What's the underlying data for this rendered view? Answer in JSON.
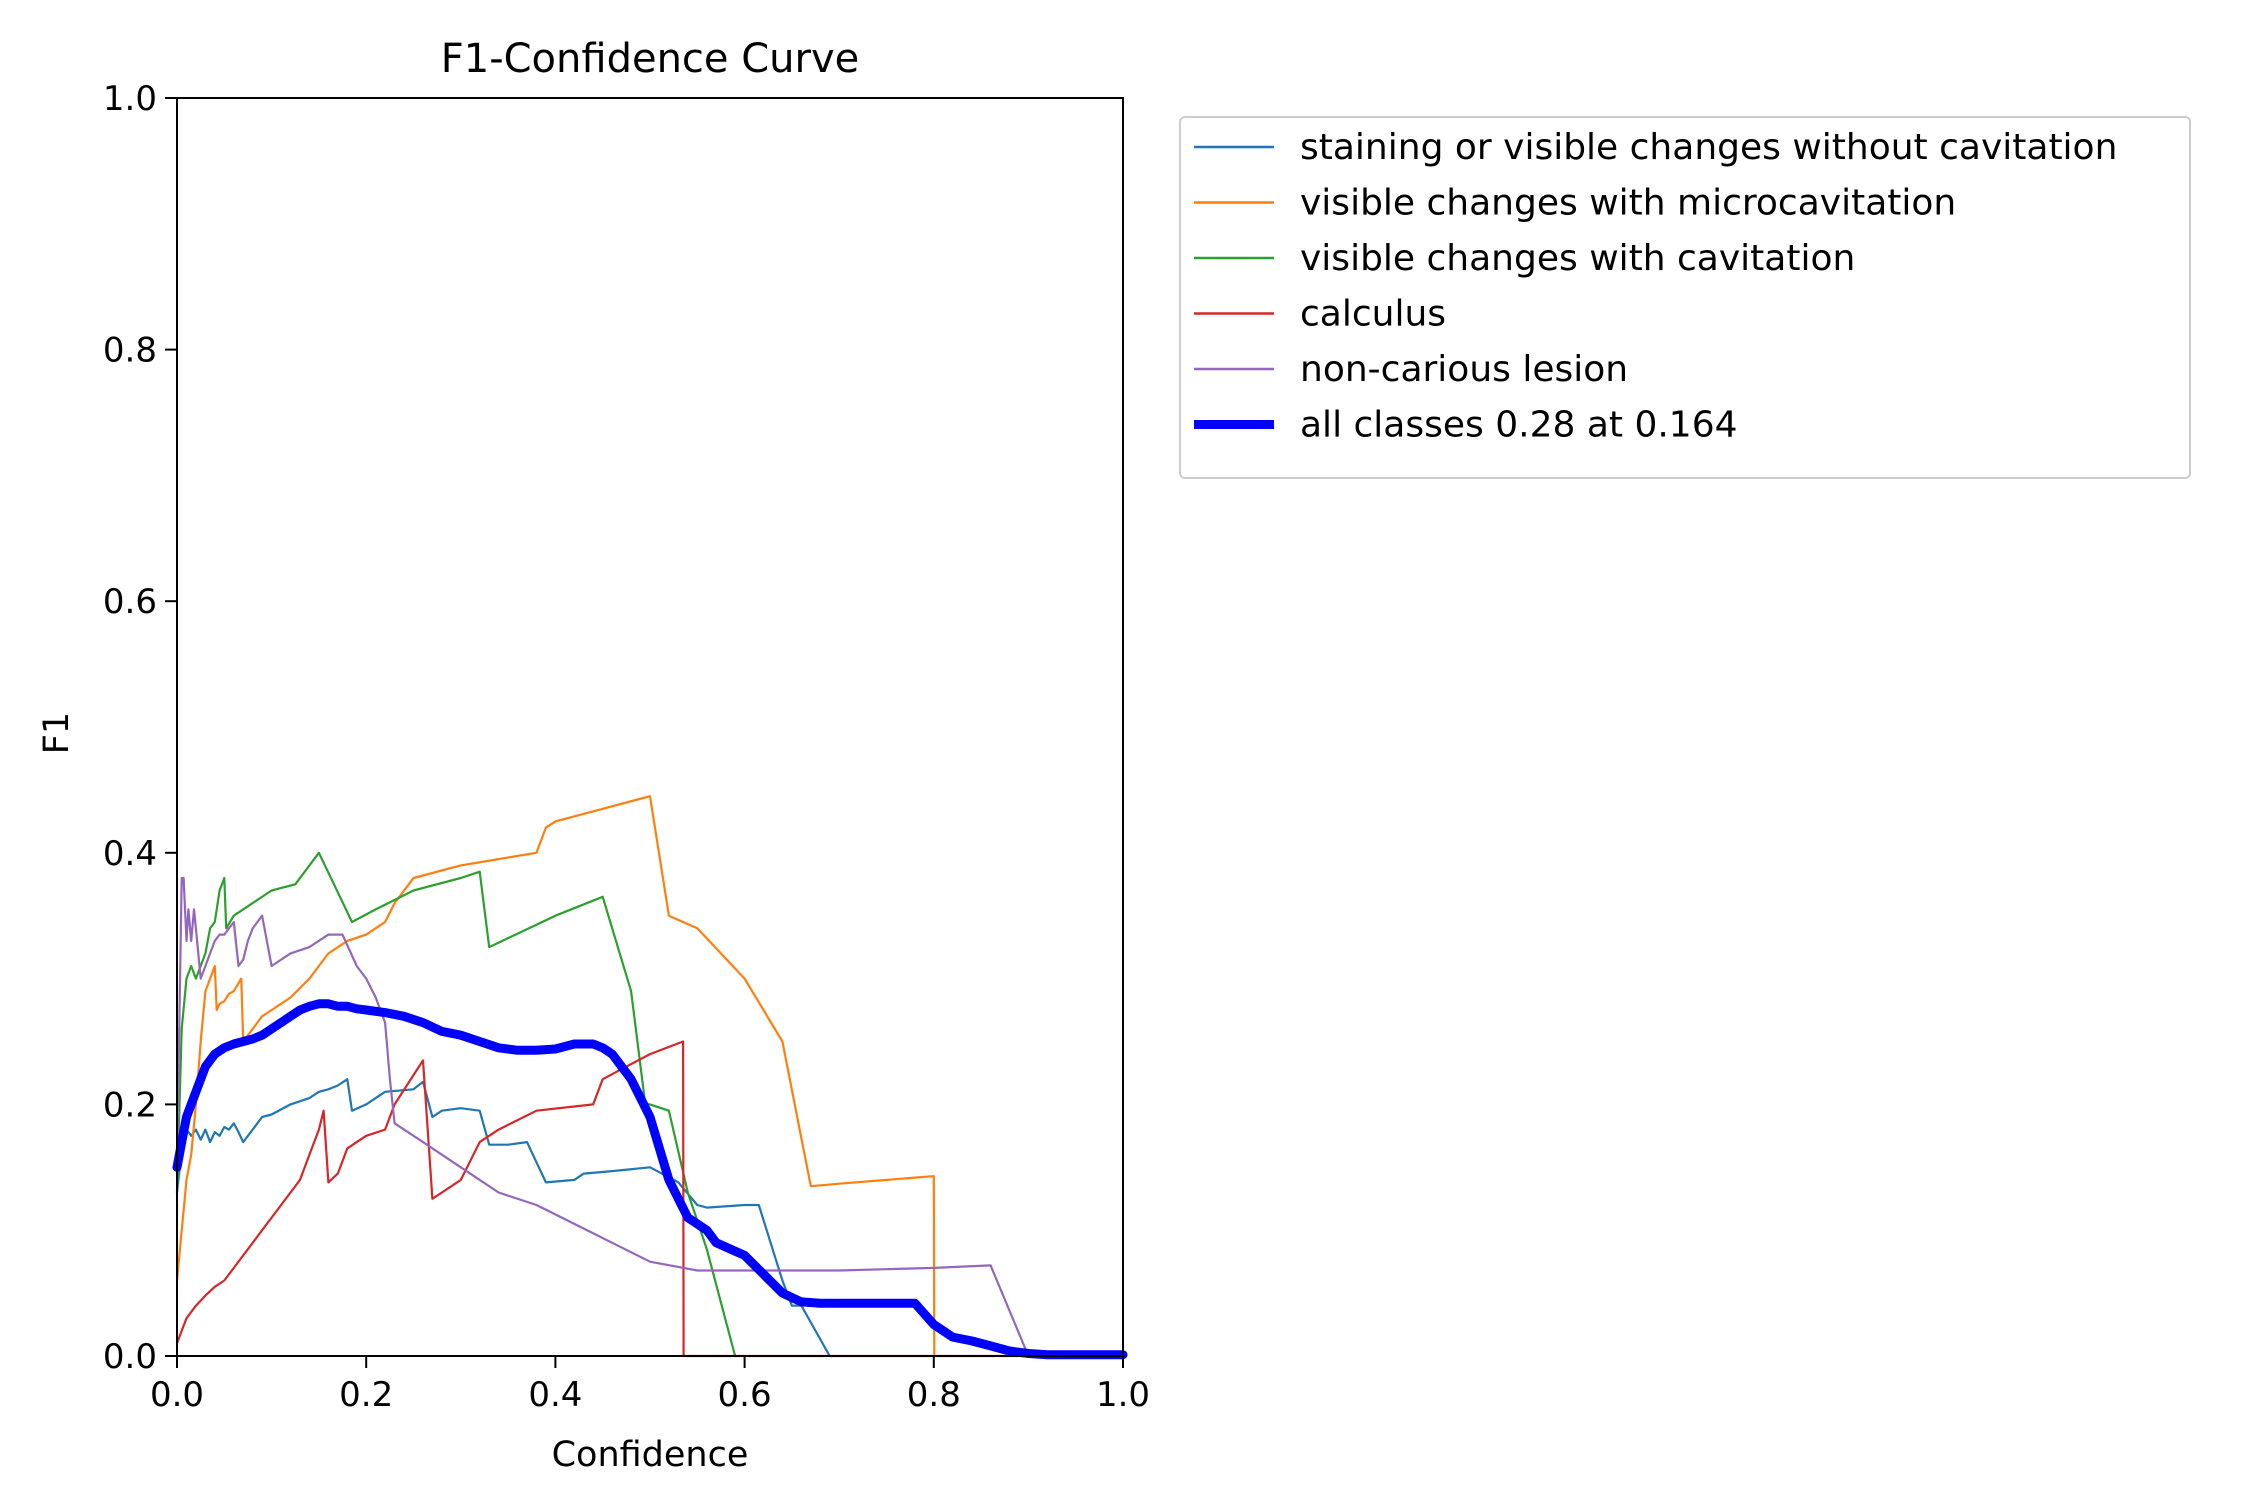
{
  "chart_data": {
    "type": "line",
    "title": "F1-Confidence Curve",
    "xlabel": "Confidence",
    "ylabel": "F1",
    "xlim": [
      0.0,
      1.0
    ],
    "ylim": [
      0.0,
      1.0
    ],
    "xticks": [
      "0.0",
      "0.2",
      "0.4",
      "0.6",
      "0.8",
      "1.0"
    ],
    "yticks": [
      "0.0",
      "0.2",
      "0.4",
      "0.6",
      "0.8",
      "1.0"
    ],
    "grid": false,
    "legend_position": "outside right, top",
    "series": [
      {
        "name": "staining or visible changes without cavitation",
        "color": "#1f77b4",
        "emphasis": false,
        "x": [
          0.0,
          0.006,
          0.01,
          0.015,
          0.02,
          0.025,
          0.03,
          0.035,
          0.04,
          0.045,
          0.05,
          0.055,
          0.06,
          0.065,
          0.07,
          0.075,
          0.08,
          0.09,
          0.1,
          0.12,
          0.14,
          0.15,
          0.16,
          0.17,
          0.18,
          0.185,
          0.2,
          0.22,
          0.25,
          0.26,
          0.27,
          0.28,
          0.3,
          0.32,
          0.33,
          0.35,
          0.37,
          0.39,
          0.42,
          0.43,
          0.46,
          0.5,
          0.53,
          0.55,
          0.56,
          0.6,
          0.615,
          0.64,
          0.65,
          0.66,
          0.69
        ],
        "y": [
          0.13,
          0.17,
          0.18,
          0.175,
          0.18,
          0.172,
          0.18,
          0.17,
          0.178,
          0.175,
          0.182,
          0.18,
          0.185,
          0.178,
          0.17,
          0.175,
          0.18,
          0.19,
          0.192,
          0.2,
          0.205,
          0.21,
          0.212,
          0.215,
          0.22,
          0.195,
          0.2,
          0.21,
          0.212,
          0.218,
          0.19,
          0.195,
          0.197,
          0.195,
          0.168,
          0.168,
          0.17,
          0.138,
          0.14,
          0.145,
          0.147,
          0.15,
          0.138,
          0.12,
          0.118,
          0.12,
          0.12,
          0.06,
          0.04,
          0.04,
          0.0
        ]
      },
      {
        "name": "visible changes with microcavitation",
        "color": "#ff7f0e",
        "emphasis": false,
        "x": [
          0.0,
          0.01,
          0.015,
          0.02,
          0.025,
          0.03,
          0.035,
          0.04,
          0.042,
          0.045,
          0.05,
          0.055,
          0.06,
          0.068,
          0.07,
          0.08,
          0.09,
          0.1,
          0.11,
          0.12,
          0.14,
          0.16,
          0.18,
          0.2,
          0.22,
          0.23,
          0.25,
          0.3,
          0.38,
          0.39,
          0.4,
          0.45,
          0.5,
          0.52,
          0.55,
          0.6,
          0.64,
          0.67,
          0.7,
          0.8,
          0.8005
        ],
        "y": [
          0.06,
          0.14,
          0.16,
          0.2,
          0.25,
          0.29,
          0.3,
          0.31,
          0.275,
          0.28,
          0.282,
          0.288,
          0.29,
          0.3,
          0.25,
          0.26,
          0.27,
          0.275,
          0.28,
          0.285,
          0.3,
          0.32,
          0.33,
          0.335,
          0.345,
          0.36,
          0.38,
          0.39,
          0.4,
          0.42,
          0.425,
          0.435,
          0.445,
          0.35,
          0.34,
          0.3,
          0.25,
          0.135,
          0.137,
          0.143,
          0.0
        ]
      },
      {
        "name": "visible changes with cavitation",
        "color": "#2ca02c",
        "emphasis": false,
        "x": [
          0.0,
          0.005,
          0.01,
          0.015,
          0.02,
          0.025,
          0.03,
          0.035,
          0.04,
          0.045,
          0.05,
          0.052,
          0.06,
          0.08,
          0.1,
          0.125,
          0.15,
          0.185,
          0.21,
          0.25,
          0.3,
          0.32,
          0.33,
          0.4,
          0.45,
          0.48,
          0.495,
          0.5,
          0.52,
          0.54,
          0.56,
          0.59
        ],
        "y": [
          0.13,
          0.26,
          0.3,
          0.31,
          0.3,
          0.31,
          0.32,
          0.34,
          0.345,
          0.37,
          0.38,
          0.34,
          0.35,
          0.36,
          0.37,
          0.375,
          0.4,
          0.345,
          0.355,
          0.37,
          0.38,
          0.385,
          0.325,
          0.35,
          0.365,
          0.29,
          0.2,
          0.2,
          0.195,
          0.13,
          0.085,
          0.0
        ]
      },
      {
        "name": "calculus",
        "color": "#d62728",
        "emphasis": false,
        "x": [
          0.0,
          0.005,
          0.01,
          0.02,
          0.03,
          0.04,
          0.05,
          0.06,
          0.07,
          0.08,
          0.09,
          0.1,
          0.11,
          0.12,
          0.13,
          0.14,
          0.15,
          0.155,
          0.16,
          0.17,
          0.18,
          0.19,
          0.2,
          0.22,
          0.23,
          0.26,
          0.27,
          0.28,
          0.3,
          0.32,
          0.34,
          0.38,
          0.44,
          0.45,
          0.5,
          0.535,
          0.5355,
          0.6,
          0.7,
          0.8,
          0.9,
          1.0
        ],
        "y": [
          0.01,
          0.02,
          0.03,
          0.04,
          0.048,
          0.055,
          0.06,
          0.07,
          0.08,
          0.09,
          0.1,
          0.11,
          0.12,
          0.13,
          0.14,
          0.16,
          0.18,
          0.195,
          0.138,
          0.145,
          0.165,
          0.17,
          0.175,
          0.18,
          0.2,
          0.235,
          0.125,
          0.13,
          0.14,
          0.17,
          0.18,
          0.195,
          0.2,
          0.22,
          0.24,
          0.25,
          0.0,
          0.0,
          0.0,
          0.0,
          0.0,
          0.0
        ]
      },
      {
        "name": "non-carious lesion",
        "color": "#9467bd",
        "emphasis": false,
        "x": [
          0.0,
          0.005,
          0.007,
          0.01,
          0.012,
          0.015,
          0.018,
          0.02,
          0.025,
          0.03,
          0.035,
          0.04,
          0.045,
          0.05,
          0.055,
          0.06,
          0.065,
          0.07,
          0.075,
          0.08,
          0.09,
          0.1,
          0.12,
          0.14,
          0.16,
          0.175,
          0.19,
          0.2,
          0.21,
          0.22,
          0.225,
          0.23,
          0.26,
          0.3,
          0.34,
          0.38,
          0.42,
          0.46,
          0.5,
          0.55,
          0.6,
          0.65,
          0.7,
          0.75,
          0.8,
          0.86,
          0.9
        ],
        "y": [
          0.15,
          0.38,
          0.38,
          0.33,
          0.355,
          0.33,
          0.355,
          0.34,
          0.3,
          0.31,
          0.32,
          0.33,
          0.335,
          0.335,
          0.34,
          0.345,
          0.31,
          0.315,
          0.33,
          0.34,
          0.35,
          0.31,
          0.32,
          0.325,
          0.335,
          0.335,
          0.31,
          0.3,
          0.285,
          0.265,
          0.22,
          0.185,
          0.17,
          0.15,
          0.13,
          0.12,
          0.105,
          0.09,
          0.075,
          0.068,
          0.068,
          0.068,
          0.068,
          0.069,
          0.07,
          0.072,
          0.0
        ]
      },
      {
        "name": "all classes 0.28 at 0.164",
        "color": "#0000ff",
        "emphasis": true,
        "x": [
          0.0,
          0.005,
          0.01,
          0.02,
          0.03,
          0.04,
          0.05,
          0.06,
          0.07,
          0.08,
          0.09,
          0.1,
          0.11,
          0.12,
          0.13,
          0.14,
          0.15,
          0.16,
          0.17,
          0.18,
          0.19,
          0.2,
          0.22,
          0.24,
          0.26,
          0.28,
          0.3,
          0.32,
          0.34,
          0.36,
          0.38,
          0.4,
          0.42,
          0.44,
          0.45,
          0.46,
          0.48,
          0.5,
          0.52,
          0.54,
          0.56,
          0.57,
          0.6,
          0.62,
          0.64,
          0.66,
          0.68,
          0.7,
          0.74,
          0.78,
          0.8,
          0.82,
          0.84,
          0.86,
          0.88,
          0.9,
          0.92,
          0.95,
          1.0
        ],
        "y": [
          0.15,
          0.17,
          0.19,
          0.21,
          0.23,
          0.24,
          0.245,
          0.248,
          0.25,
          0.252,
          0.255,
          0.26,
          0.265,
          0.27,
          0.275,
          0.278,
          0.28,
          0.28,
          0.278,
          0.278,
          0.276,
          0.275,
          0.273,
          0.27,
          0.265,
          0.258,
          0.255,
          0.25,
          0.245,
          0.243,
          0.243,
          0.244,
          0.248,
          0.248,
          0.245,
          0.24,
          0.22,
          0.19,
          0.14,
          0.11,
          0.1,
          0.09,
          0.08,
          0.065,
          0.05,
          0.043,
          0.042,
          0.042,
          0.042,
          0.042,
          0.025,
          0.015,
          0.012,
          0.008,
          0.004,
          0.002,
          0.001,
          0.001,
          0.001
        ]
      }
    ]
  }
}
